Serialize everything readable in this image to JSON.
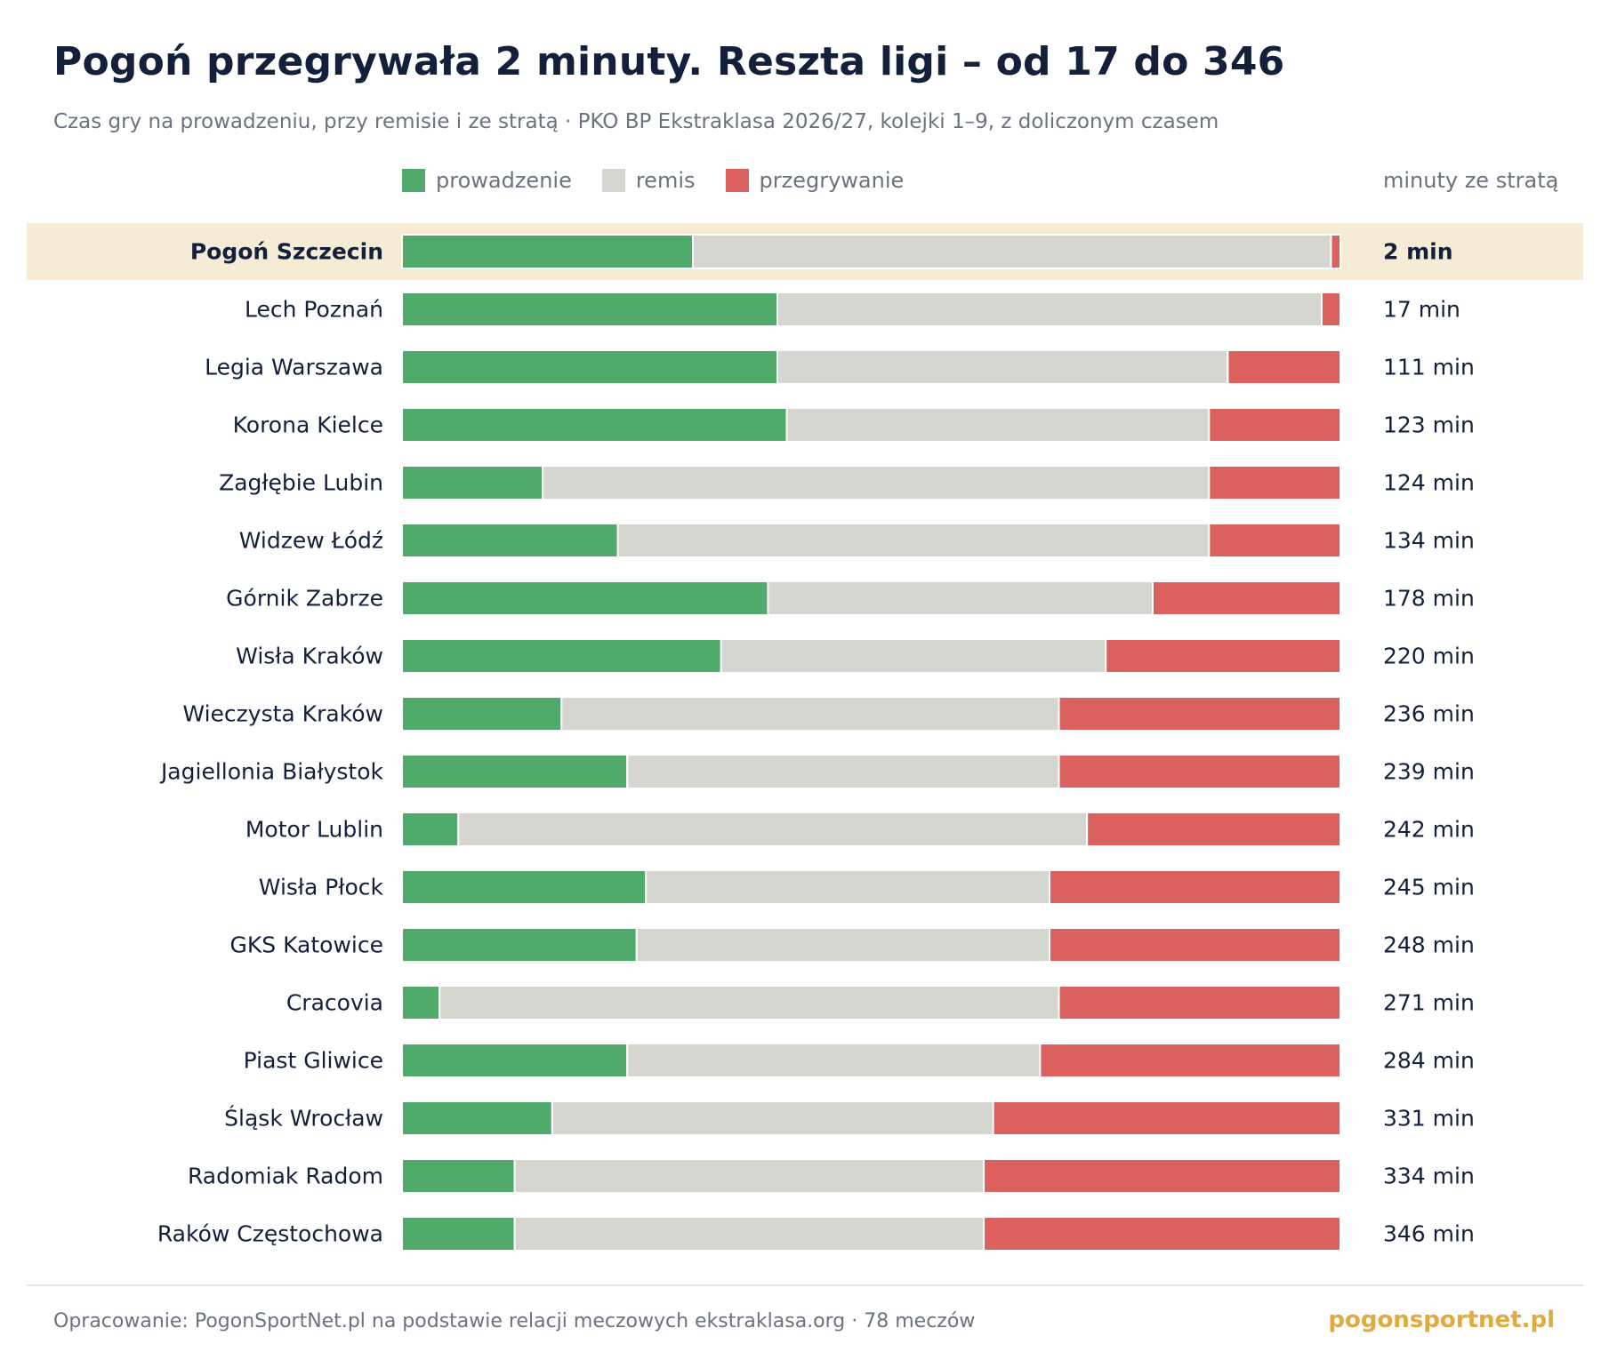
{
  "header": {
    "title": "Pogoń przegrywała 2 minuty. Reszta ligi – od 17 do 346",
    "subtitle": "Czas gry na prowadzeniu, przy remisie i ze stratą · PKO BP Ekstraklasa 2026/27, kolejki 1–9, z doliczonym czasem"
  },
  "legend": {
    "items": [
      {
        "label": "prowadzenie",
        "color": "#4faa6b"
      },
      {
        "label": "remis",
        "color": "#d6d6d0"
      },
      {
        "label": "przegrywanie",
        "color": "#db615e"
      }
    ],
    "value_header": "minuty ze stratą"
  },
  "chart_data": {
    "type": "bar",
    "orientation": "horizontal",
    "stacked": true,
    "normalized": true,
    "highlight_category": "Pogoń Szczecin",
    "categories": [
      "Pogoń Szczecin",
      "Lech Poznań",
      "Legia Warszawa",
      "Korona Kielce",
      "Zagłębie Lubin",
      "Widzew Łódź",
      "Górnik Zabrze",
      "Wisła Kraków",
      "Wieczysta Kraków",
      "Jagiellonia Białystok",
      "Motor Lublin",
      "Wisła Płock",
      "GKS Katowice",
      "Cracovia",
      "Piast Gliwice",
      "Śląsk Wrocław",
      "Radomiak Radom",
      "Raków Częstochowa"
    ],
    "series": [
      {
        "name": "prowadzenie",
        "color": "#4faa6b",
        "values": [
          0.31,
          0.4,
          0.4,
          0.41,
          0.15,
          0.23,
          0.39,
          0.34,
          0.17,
          0.24,
          0.06,
          0.26,
          0.25,
          0.04,
          0.24,
          0.16,
          0.12,
          0.12
        ]
      },
      {
        "name": "remis",
        "color": "#d6d6d0",
        "values": [
          0.68,
          0.58,
          0.48,
          0.45,
          0.71,
          0.63,
          0.41,
          0.41,
          0.53,
          0.46,
          0.67,
          0.43,
          0.44,
          0.66,
          0.44,
          0.47,
          0.5,
          0.5
        ]
      },
      {
        "name": "przegrywanie",
        "color": "#db615e",
        "values": [
          0.01,
          0.02,
          0.12,
          0.14,
          0.14,
          0.14,
          0.2,
          0.25,
          0.3,
          0.3,
          0.27,
          0.31,
          0.31,
          0.3,
          0.32,
          0.37,
          0.38,
          0.38
        ]
      }
    ],
    "value_labels": [
      "2 min",
      "17 min",
      "111 min",
      "123 min",
      "124 min",
      "134 min",
      "178 min",
      "220 min",
      "236 min",
      "239 min",
      "242 min",
      "245 min",
      "248 min",
      "271 min",
      "284 min",
      "331 min",
      "334 min",
      "346 min"
    ],
    "losing_minutes": [
      2,
      17,
      111,
      123,
      124,
      134,
      178,
      220,
      236,
      239,
      242,
      245,
      248,
      271,
      284,
      331,
      334,
      346
    ],
    "xlim": [
      0,
      1
    ],
    "grid": false,
    "legend_position": "top-left"
  },
  "footer": {
    "source": "Opracowanie: PogonSportNet.pl na podstawie relacji meczowych ekstraklasa.org · 78 meczów",
    "brand": "pogonsportnet.pl"
  },
  "colors": {
    "title": "#13203b",
    "muted": "#6b7280",
    "highlight_band": "#f6ecd6",
    "brand": "#e0aa3e"
  }
}
